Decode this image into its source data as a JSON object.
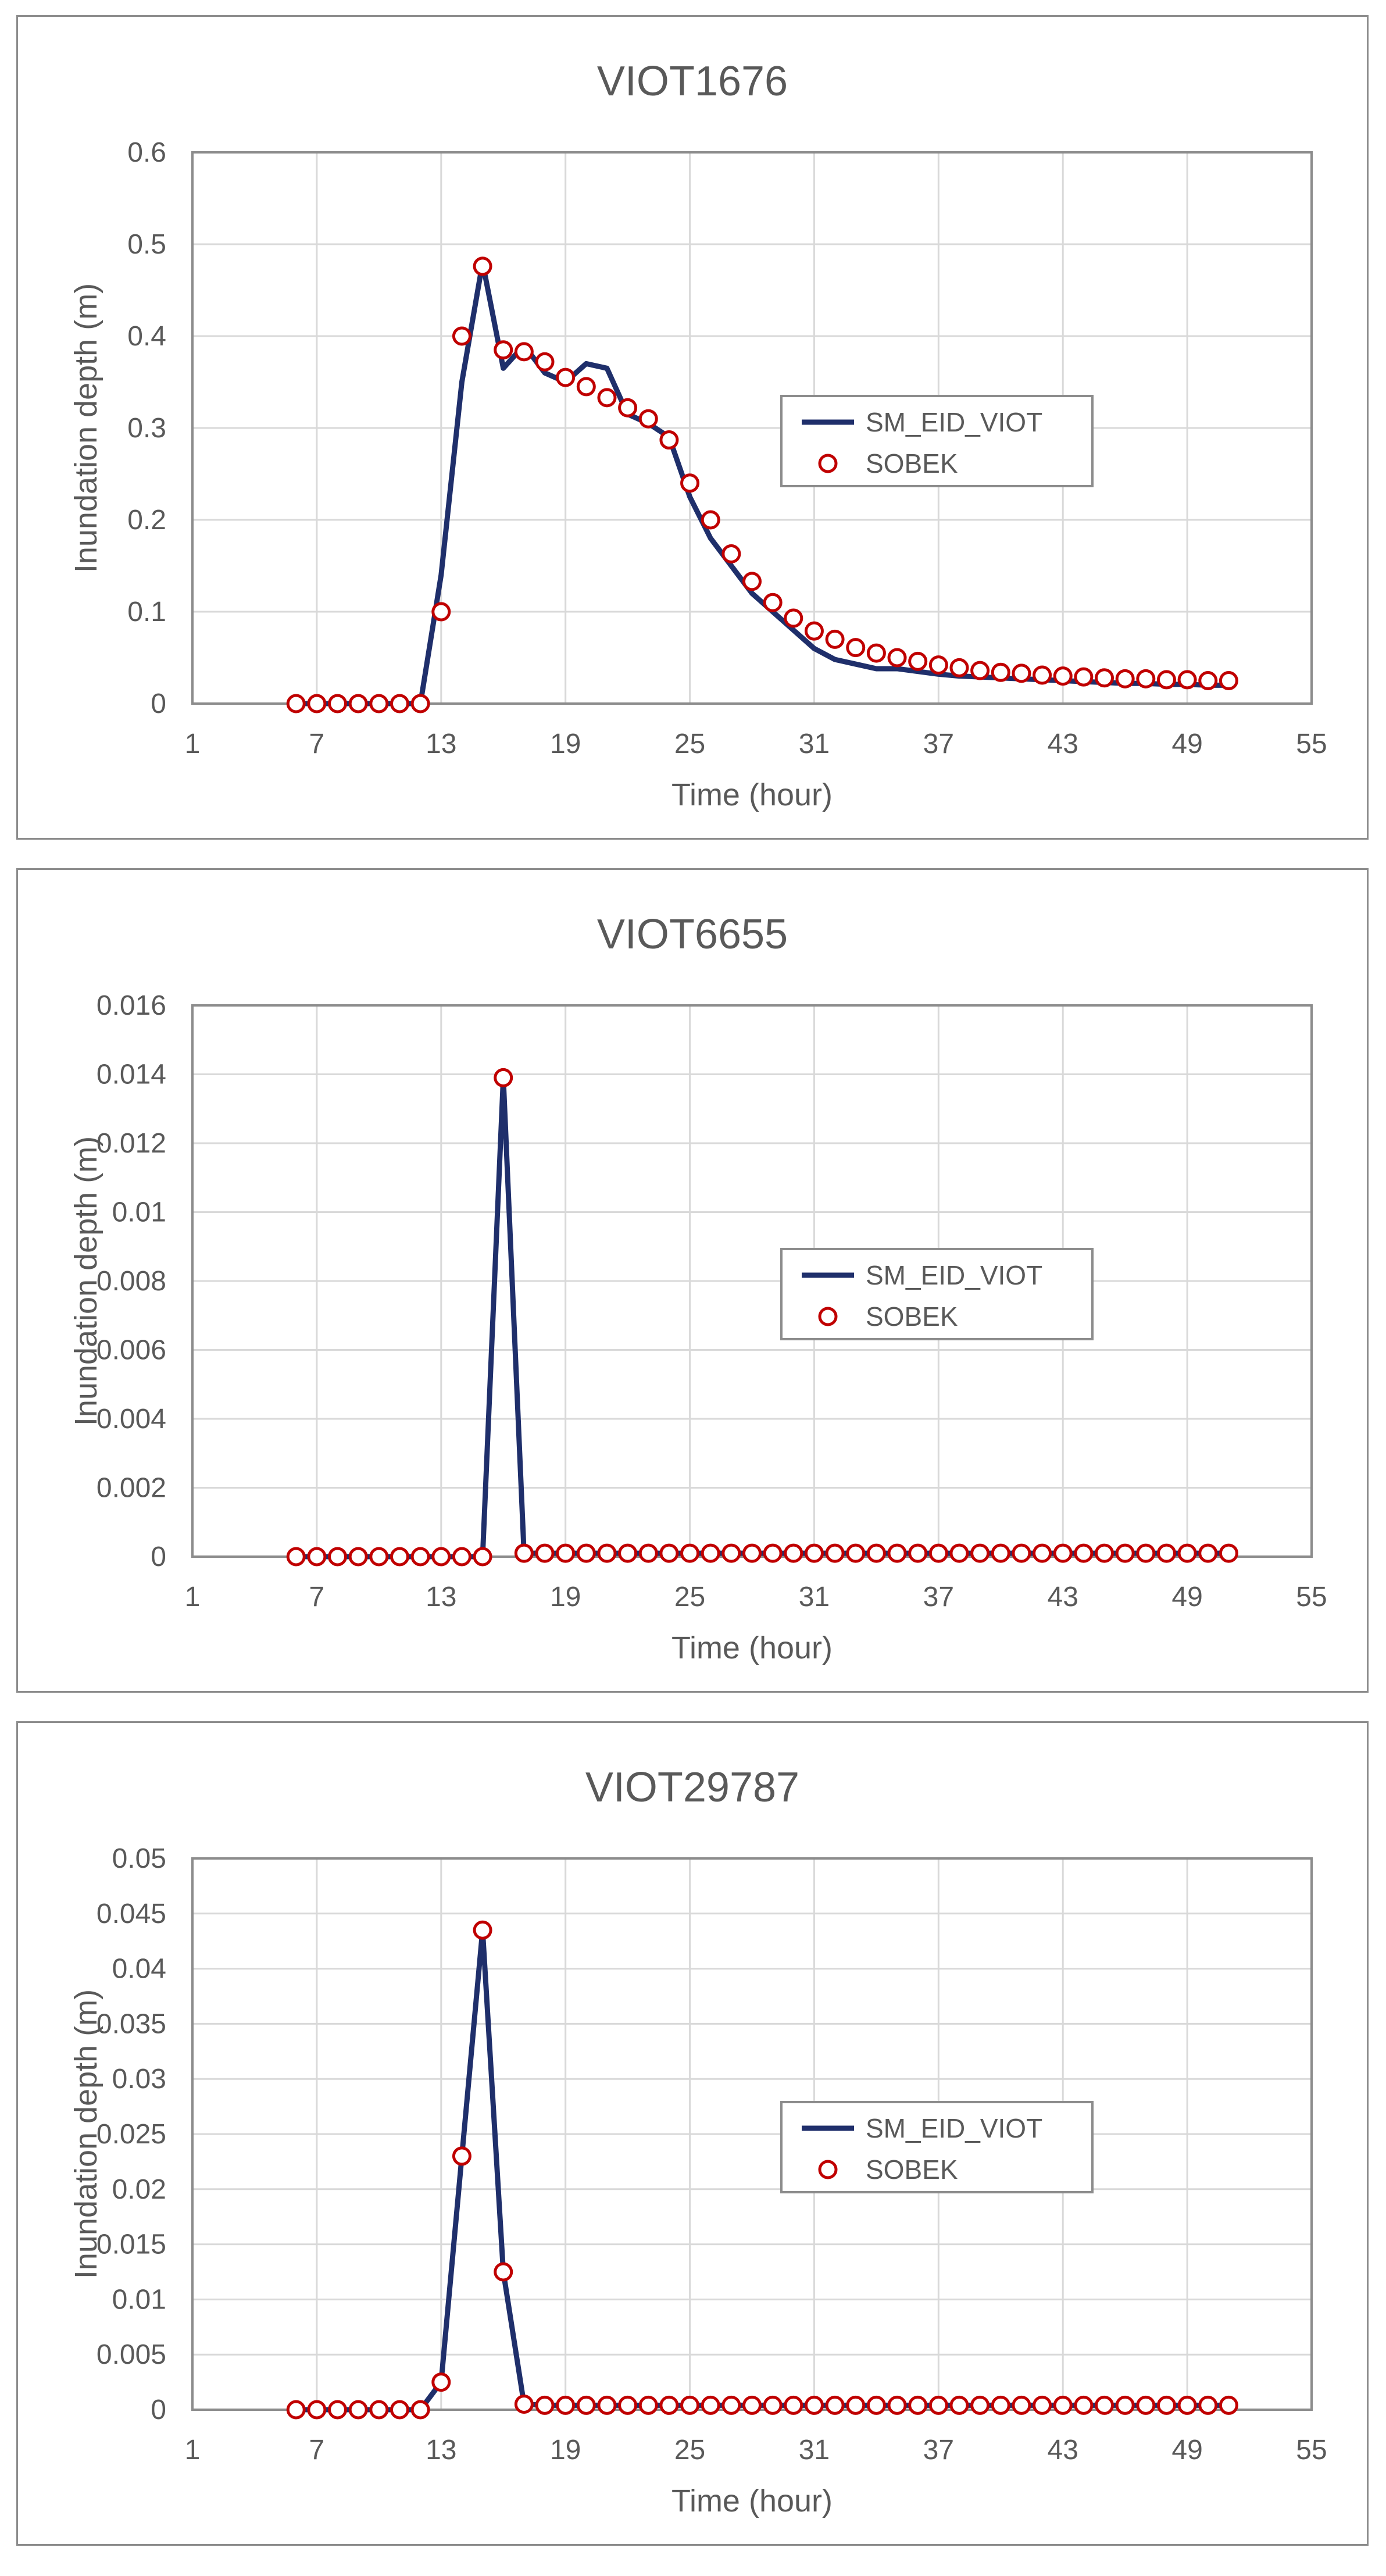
{
  "chart_data": [
    {
      "type": "line",
      "title": "VIOT1676",
      "xlabel": "Time (hour)",
      "ylabel": "Inundation depth (m)",
      "xlim": [
        1,
        55
      ],
      "ylim": [
        0,
        0.6
      ],
      "xticks": [
        1,
        7,
        13,
        19,
        25,
        31,
        37,
        43,
        49,
        55
      ],
      "xtick_labels": [
        "1",
        "7",
        "13",
        "19",
        "25",
        "31",
        "37",
        "43",
        "49",
        "55"
      ],
      "yticks": [
        0,
        0.1,
        0.2,
        0.3,
        0.4,
        0.5,
        0.6
      ],
      "ytick_labels": [
        "0",
        "0.1",
        "0.2",
        "0.3",
        "0.4",
        "0.5",
        "0.6"
      ],
      "grid": true,
      "legend_position": "right-center",
      "series": [
        {
          "name": "SM_EID_VIOT",
          "kind": "line",
          "color": "#1f2f6b",
          "x": [
            6,
            7,
            8,
            9,
            10,
            11,
            12,
            13,
            14,
            15,
            16,
            17,
            18,
            19,
            20,
            21,
            22,
            23,
            24,
            25,
            26,
            27,
            28,
            29,
            30,
            31,
            32,
            33,
            34,
            35,
            36,
            37,
            38,
            39,
            40,
            41,
            42,
            43,
            44,
            45,
            46,
            47,
            48,
            49,
            50,
            51
          ],
          "y": [
            0,
            0,
            0,
            0,
            0,
            0,
            0,
            0.14,
            0.35,
            0.48,
            0.365,
            0.39,
            0.36,
            0.35,
            0.37,
            0.365,
            0.315,
            0.305,
            0.29,
            0.225,
            0.18,
            0.15,
            0.12,
            0.1,
            0.08,
            0.06,
            0.048,
            0.043,
            0.038,
            0.038,
            0.035,
            0.032,
            0.03,
            0.029,
            0.028,
            0.027,
            0.026,
            0.025,
            0.024,
            0.023,
            0.022,
            0.022,
            0.021,
            0.021,
            0.02,
            0.02
          ]
        },
        {
          "name": "SOBEK",
          "kind": "scatter",
          "color": "#c00000",
          "x": [
            6,
            7,
            8,
            9,
            10,
            11,
            12,
            13,
            14,
            15,
            16,
            17,
            18,
            19,
            20,
            21,
            22,
            23,
            24,
            25,
            26,
            27,
            28,
            29,
            30,
            31,
            32,
            33,
            34,
            35,
            36,
            37,
            38,
            39,
            40,
            41,
            42,
            43,
            44,
            45,
            46,
            47,
            48,
            49,
            50,
            51
          ],
          "y": [
            0,
            0,
            0,
            0,
            0,
            0,
            0,
            0.1,
            0.4,
            0.476,
            0.385,
            0.383,
            0.372,
            0.355,
            0.345,
            0.333,
            0.322,
            0.31,
            0.287,
            0.24,
            0.2,
            0.163,
            0.133,
            0.11,
            0.093,
            0.079,
            0.07,
            0.061,
            0.055,
            0.05,
            0.046,
            0.042,
            0.039,
            0.036,
            0.034,
            0.033,
            0.031,
            0.03,
            0.029,
            0.028,
            0.027,
            0.027,
            0.026,
            0.026,
            0.025,
            0.025
          ]
        }
      ]
    },
    {
      "type": "line",
      "title": "VIOT6655",
      "xlabel": "Time (hour)",
      "ylabel": "Inundation depth (m)",
      "xlim": [
        1,
        55
      ],
      "ylim": [
        0,
        0.016
      ],
      "xticks": [
        1,
        7,
        13,
        19,
        25,
        31,
        37,
        43,
        49,
        55
      ],
      "xtick_labels": [
        "1",
        "7",
        "13",
        "19",
        "25",
        "31",
        "37",
        "43",
        "49",
        "55"
      ],
      "yticks": [
        0,
        0.002,
        0.004,
        0.006,
        0.008,
        0.01,
        0.012,
        0.014,
        0.016
      ],
      "ytick_labels": [
        "0",
        "0.002",
        "0.004",
        "0.006",
        "0.008",
        "0.01",
        "0.012",
        "0.014",
        "0.016"
      ],
      "grid": true,
      "legend_position": "right-center",
      "series": [
        {
          "name": "SM_EID_VIOT",
          "kind": "line",
          "color": "#1f2f6b",
          "x": [
            6,
            7,
            8,
            9,
            10,
            11,
            12,
            13,
            14,
            15,
            16,
            17,
            18,
            19,
            20,
            21,
            22,
            23,
            24,
            25,
            26,
            27,
            28,
            29,
            30,
            31,
            32,
            33,
            34,
            35,
            36,
            37,
            38,
            39,
            40,
            41,
            42,
            43,
            44,
            45,
            46,
            47,
            48,
            49,
            50,
            51
          ],
          "y": [
            0,
            0,
            0,
            0,
            0,
            0,
            0,
            0,
            0,
            0,
            0.0139,
            0.0001,
            0.0001,
            0.0001,
            0.0001,
            0.0001,
            0.0001,
            0.0001,
            0.0001,
            0.0001,
            0.0001,
            0.0001,
            0.0001,
            0.0001,
            0.0001,
            0.0001,
            0.0001,
            0.0001,
            0.0001,
            0.0001,
            0.0001,
            0.0001,
            0.0001,
            0.0001,
            0.0001,
            0.0001,
            0.0001,
            0.0001,
            0.0001,
            0.0001,
            0.0001,
            0.0001,
            0.0001,
            0.0001,
            0.0001,
            0.0001
          ]
        },
        {
          "name": "SOBEK",
          "kind": "scatter",
          "color": "#c00000",
          "x": [
            6,
            7,
            8,
            9,
            10,
            11,
            12,
            13,
            14,
            15,
            16,
            17,
            18,
            19,
            20,
            21,
            22,
            23,
            24,
            25,
            26,
            27,
            28,
            29,
            30,
            31,
            32,
            33,
            34,
            35,
            36,
            37,
            38,
            39,
            40,
            41,
            42,
            43,
            44,
            45,
            46,
            47,
            48,
            49,
            50,
            51
          ],
          "y": [
            0,
            0,
            0,
            0,
            0,
            0,
            0,
            0,
            0,
            0,
            0.0139,
            0.0001,
            0.0001,
            0.0001,
            0.0001,
            0.0001,
            0.0001,
            0.0001,
            0.0001,
            0.0001,
            0.0001,
            0.0001,
            0.0001,
            0.0001,
            0.0001,
            0.0001,
            0.0001,
            0.0001,
            0.0001,
            0.0001,
            0.0001,
            0.0001,
            0.0001,
            0.0001,
            0.0001,
            0.0001,
            0.0001,
            0.0001,
            0.0001,
            0.0001,
            0.0001,
            0.0001,
            0.0001,
            0.0001,
            0.0001,
            0.0001
          ]
        }
      ]
    },
    {
      "type": "line",
      "title": "VIOT29787",
      "xlabel": "Time (hour)",
      "ylabel": "Inundation depth (m)",
      "xlim": [
        1,
        55
      ],
      "ylim": [
        0,
        0.05
      ],
      "xticks": [
        1,
        7,
        13,
        19,
        25,
        31,
        37,
        43,
        49,
        55
      ],
      "xtick_labels": [
        "1",
        "7",
        "13",
        "19",
        "25",
        "31",
        "37",
        "43",
        "49",
        "55"
      ],
      "yticks": [
        0,
        0.005,
        0.01,
        0.015,
        0.02,
        0.025,
        0.03,
        0.035,
        0.04,
        0.045,
        0.05
      ],
      "ytick_labels": [
        "0",
        "0.005",
        "0.01",
        "0.015",
        "0.02",
        "0.025",
        "0.03",
        "0.035",
        "0.04",
        "0.045",
        "0.05"
      ],
      "grid": true,
      "legend_position": "right-center",
      "series": [
        {
          "name": "SM_EID_VIOT",
          "kind": "line",
          "color": "#1f2f6b",
          "x": [
            6,
            7,
            8,
            9,
            10,
            11,
            12,
            13,
            14,
            15,
            16,
            17,
            18,
            19,
            20,
            21,
            22,
            23,
            24,
            25,
            26,
            27,
            28,
            29,
            30,
            31,
            32,
            33,
            34,
            35,
            36,
            37,
            38,
            39,
            40,
            41,
            42,
            43,
            44,
            45,
            46,
            47,
            48,
            49,
            50,
            51
          ],
          "y": [
            0,
            0,
            0,
            0,
            0,
            0,
            0,
            0.0025,
            0.023,
            0.0435,
            0.0125,
            0.0005,
            0.0004,
            0.0004,
            0.0004,
            0.0004,
            0.0004,
            0.0004,
            0.0004,
            0.0004,
            0.0004,
            0.0004,
            0.0004,
            0.0004,
            0.0004,
            0.0004,
            0.0004,
            0.0004,
            0.0004,
            0.0004,
            0.0004,
            0.0004,
            0.0004,
            0.0004,
            0.0004,
            0.0004,
            0.0004,
            0.0004,
            0.0004,
            0.0004,
            0.0004,
            0.0004,
            0.0004,
            0.0004,
            0.0004,
            0.0004
          ]
        },
        {
          "name": "SOBEK",
          "kind": "scatter",
          "color": "#c00000",
          "x": [
            6,
            7,
            8,
            9,
            10,
            11,
            12,
            13,
            14,
            15,
            16,
            17,
            18,
            19,
            20,
            21,
            22,
            23,
            24,
            25,
            26,
            27,
            28,
            29,
            30,
            31,
            32,
            33,
            34,
            35,
            36,
            37,
            38,
            39,
            40,
            41,
            42,
            43,
            44,
            45,
            46,
            47,
            48,
            49,
            50,
            51
          ],
          "y": [
            0,
            0,
            0,
            0,
            0,
            0,
            0,
            0.0025,
            0.023,
            0.0435,
            0.0125,
            0.0005,
            0.0004,
            0.0004,
            0.0004,
            0.0004,
            0.0004,
            0.0004,
            0.0004,
            0.0004,
            0.0004,
            0.0004,
            0.0004,
            0.0004,
            0.0004,
            0.0004,
            0.0004,
            0.0004,
            0.0004,
            0.0004,
            0.0004,
            0.0004,
            0.0004,
            0.0004,
            0.0004,
            0.0004,
            0.0004,
            0.0004,
            0.0004,
            0.0004,
            0.0004,
            0.0004,
            0.0004,
            0.0004,
            0.0004,
            0.0004
          ]
        }
      ]
    }
  ],
  "colors": {
    "grid": "#d9d9d9",
    "axis": "#8c8c8c",
    "text": "#595959",
    "legend_border": "#8c8c8c"
  }
}
